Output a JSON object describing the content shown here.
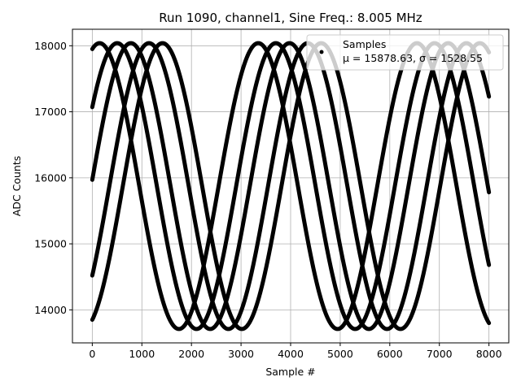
{
  "chart_data": {
    "type": "scatter",
    "title": "Run 1090, channel1, Sine Freq.: 8.005 MHz",
    "xlabel": "Sample #",
    "ylabel": "ADC Counts",
    "xlim": [
      -400,
      8400
    ],
    "ylim": [
      13500,
      18250
    ],
    "xticks": [
      0,
      1000,
      2000,
      3000,
      4000,
      5000,
      6000,
      7000,
      8000
    ],
    "yticks": [
      14000,
      15000,
      16000,
      17000,
      18000
    ],
    "grid": true,
    "legend": {
      "placement": "top-right",
      "series_label": "Samples",
      "stats_label": "μ = 15878.63, σ = 1528.55"
    },
    "series": [
      {
        "name": "Samples",
        "color": "#000000",
        "marker": "point",
        "signal": {
          "mean": 15875,
          "amplitude": 2165,
          "phases": 5,
          "phase_period": 3200,
          "start_values": [
            17950,
            17070,
            15970,
            14520,
            13850
          ],
          "x_range": [
            0,
            8000
          ]
        }
      }
    ]
  }
}
